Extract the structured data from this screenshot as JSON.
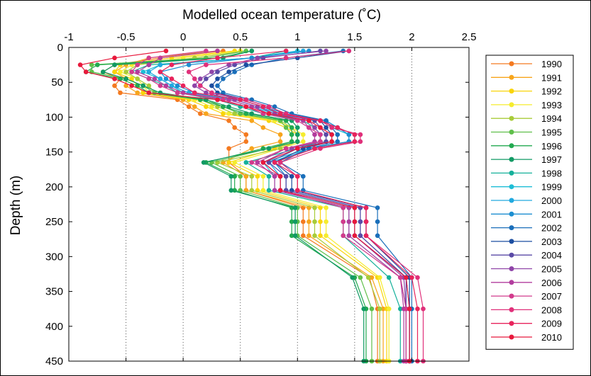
{
  "chart_data": {
    "type": "line",
    "title": "Modelled ocean temperature (˚C)",
    "xlabel": "",
    "ylabel": "Depth (m)",
    "xlim": [
      -1,
      2.5
    ],
    "ylim": [
      0,
      450
    ],
    "y_inverted": true,
    "x_axis_position": "top",
    "x_ticks": [
      -1,
      -0.5,
      0,
      0.5,
      1,
      1.5,
      2,
      2.5
    ],
    "x_tick_labels": [
      "-1",
      "-0.5",
      "0",
      "0.5",
      "1",
      "1.5",
      "2",
      "2.5"
    ],
    "y_ticks": [
      0,
      50,
      100,
      150,
      200,
      250,
      300,
      350,
      400,
      450
    ],
    "y_tick_labels": [
      "0",
      "50",
      "100",
      "150",
      "200",
      "250",
      "300",
      "350",
      "400",
      "450"
    ],
    "grid": "vertical-dotted",
    "legend_position": "right",
    "depths": [
      5,
      15,
      25,
      35,
      45,
      55,
      65,
      75,
      85,
      95,
      105,
      115,
      125,
      135,
      145,
      165,
      185,
      205,
      230,
      250,
      270,
      330,
      375,
      450
    ],
    "series": [
      {
        "name": "1990",
        "color": "#f47a20",
        "values": [
          0.35,
          -0.2,
          -0.6,
          -0.7,
          -0.55,
          -0.6,
          -0.55,
          -0.05,
          0.05,
          0.15,
          0.4,
          0.45,
          0.55,
          0.55,
          0.4,
          0.4,
          0.55,
          0.55,
          1.05,
          1.05,
          1.05,
          1.63,
          1.7,
          1.7
        ]
      },
      {
        "name": "1991",
        "color": "#f7a51c",
        "values": [
          0.3,
          -0.3,
          -0.5,
          -0.6,
          -0.5,
          -0.5,
          -0.4,
          0.0,
          0.1,
          0.2,
          0.6,
          0.7,
          0.85,
          0.85,
          0.6,
          0.35,
          0.55,
          0.55,
          1.1,
          1.1,
          1.1,
          1.65,
          1.75,
          1.75
        ]
      },
      {
        "name": "1992",
        "color": "#f9d40a",
        "values": [
          0.45,
          -0.1,
          -0.55,
          -0.6,
          -0.45,
          -0.4,
          -0.35,
          0.05,
          0.2,
          0.35,
          0.75,
          0.9,
          1.0,
          1.0,
          0.8,
          0.4,
          0.65,
          0.65,
          1.2,
          1.2,
          1.2,
          1.7,
          1.78,
          1.78
        ]
      },
      {
        "name": "1993",
        "color": "#f5ec2e",
        "values": [
          0.5,
          0.0,
          -0.45,
          -0.55,
          -0.4,
          -0.35,
          -0.3,
          0.1,
          0.25,
          0.4,
          0.8,
          0.95,
          1.05,
          1.05,
          0.85,
          0.45,
          0.7,
          0.7,
          1.25,
          1.25,
          1.25,
          1.72,
          1.8,
          1.8
        ]
      },
      {
        "name": "1994",
        "color": "#a8cc3a",
        "values": [
          0.55,
          0.1,
          -0.4,
          -0.5,
          -0.4,
          -0.3,
          -0.25,
          0.15,
          0.3,
          0.45,
          0.85,
          0.95,
          1.0,
          1.0,
          0.85,
          0.3,
          0.6,
          0.6,
          1.15,
          1.15,
          1.15,
          1.62,
          1.72,
          1.72
        ]
      },
      {
        "name": "1995",
        "color": "#5fbf4a",
        "values": [
          0.55,
          0.2,
          -0.8,
          -0.8,
          -0.5,
          -0.35,
          -0.25,
          0.2,
          0.35,
          0.5,
          0.85,
          0.9,
          0.95,
          0.95,
          0.75,
          0.25,
          0.5,
          0.5,
          1.0,
          1.0,
          1.0,
          1.55,
          1.65,
          1.65
        ]
      },
      {
        "name": "1996",
        "color": "#22aa50",
        "values": [
          0.6,
          0.3,
          -0.75,
          -0.85,
          -0.55,
          -0.4,
          -0.3,
          0.15,
          0.35,
          0.55,
          0.9,
          0.95,
          0.95,
          0.95,
          0.7,
          0.2,
          0.45,
          0.45,
          0.95,
          0.95,
          0.95,
          1.5,
          1.6,
          1.6
        ]
      },
      {
        "name": "1997",
        "color": "#119a64",
        "values": [
          0.6,
          0.35,
          -0.6,
          -0.7,
          -0.5,
          -0.35,
          -0.2,
          0.2,
          0.4,
          0.6,
          0.95,
          1.0,
          1.0,
          1.0,
          0.75,
          0.18,
          0.42,
          0.42,
          0.98,
          0.98,
          0.98,
          1.48,
          1.58,
          1.58
        ]
      },
      {
        "name": "1998",
        "color": "#14b09a",
        "values": [
          0.9,
          0.6,
          -0.3,
          -0.45,
          -0.3,
          -0.15,
          -0.05,
          0.3,
          0.5,
          0.7,
          1.05,
          1.15,
          1.2,
          1.2,
          1.0,
          0.55,
          0.75,
          0.75,
          1.4,
          1.4,
          1.4,
          1.8,
          1.9,
          1.9
        ]
      },
      {
        "name": "1999",
        "color": "#1ebdd6",
        "values": [
          1.0,
          0.6,
          -0.2,
          -0.35,
          -0.2,
          -0.1,
          0.0,
          0.4,
          0.6,
          0.8,
          1.2,
          1.3,
          1.45,
          1.45,
          1.1,
          0.7,
          0.8,
          0.8,
          1.45,
          1.45,
          1.45,
          1.9,
          1.95,
          1.95
        ]
      },
      {
        "name": "2000",
        "color": "#21a9df",
        "values": [
          1.05,
          0.6,
          -0.2,
          -0.3,
          -0.2,
          -0.1,
          0.05,
          0.45,
          0.65,
          0.85,
          1.25,
          1.35,
          1.5,
          1.5,
          1.15,
          0.75,
          0.85,
          0.85,
          1.5,
          1.5,
          1.5,
          1.95,
          1.98,
          1.98
        ]
      },
      {
        "name": "2001",
        "color": "#1c8ed0",
        "values": [
          1.1,
          0.6,
          0.05,
          -0.2,
          -0.15,
          -0.05,
          0.1,
          0.5,
          0.7,
          0.9,
          1.25,
          1.35,
          1.45,
          1.45,
          1.1,
          0.8,
          0.9,
          0.9,
          1.55,
          1.55,
          1.55,
          1.95,
          1.98,
          1.98
        ]
      },
      {
        "name": "2002",
        "color": "#1a6fba",
        "values": [
          1.4,
          0.9,
          0.6,
          0.45,
          0.35,
          0.3,
          0.35,
          0.6,
          0.8,
          0.95,
          1.25,
          1.3,
          1.35,
          1.35,
          1.1,
          0.85,
          1.05,
          1.05,
          1.7,
          1.7,
          1.7,
          2.0,
          2.0,
          2.0
        ]
      },
      {
        "name": "2003",
        "color": "#1c4ea0",
        "values": [
          1.45,
          1.0,
          0.55,
          0.4,
          0.3,
          0.25,
          0.3,
          0.55,
          0.75,
          0.9,
          1.2,
          1.25,
          1.3,
          1.3,
          1.05,
          0.8,
          0.95,
          0.95,
          1.6,
          1.6,
          1.6,
          1.98,
          1.98,
          1.98
        ]
      },
      {
        "name": "2004",
        "color": "#5a4aa6",
        "values": [
          1.2,
          0.7,
          0.45,
          0.3,
          0.2,
          0.15,
          0.25,
          0.5,
          0.7,
          0.85,
          1.15,
          1.2,
          1.25,
          1.25,
          1.0,
          0.75,
          0.9,
          0.9,
          1.55,
          1.55,
          1.55,
          1.95,
          1.95,
          1.95
        ]
      },
      {
        "name": "2005",
        "color": "#8f44a8",
        "values": [
          1.25,
          0.65,
          0.4,
          0.25,
          0.15,
          0.1,
          0.2,
          0.45,
          0.65,
          0.8,
          1.1,
          1.15,
          1.2,
          1.2,
          0.95,
          0.7,
          0.85,
          0.85,
          1.5,
          1.5,
          1.5,
          1.93,
          1.95,
          1.95
        ]
      },
      {
        "name": "2006",
        "color": "#b23d9e",
        "values": [
          0.3,
          -0.2,
          -0.3,
          -0.4,
          -0.25,
          -0.15,
          0.0,
          0.4,
          0.6,
          0.75,
          1.05,
          1.1,
          1.15,
          1.15,
          0.9,
          0.65,
          0.8,
          0.8,
          1.45,
          1.45,
          1.45,
          1.9,
          1.93,
          1.93
        ]
      },
      {
        "name": "2007",
        "color": "#d23a8c",
        "values": [
          0.2,
          -0.3,
          -0.4,
          -0.45,
          -0.3,
          -0.2,
          -0.05,
          0.35,
          0.55,
          0.7,
          1.0,
          1.1,
          1.2,
          1.2,
          0.9,
          0.6,
          0.85,
          0.85,
          1.4,
          1.4,
          1.4,
          1.9,
          1.95,
          1.95
        ]
      },
      {
        "name": "2008",
        "color": "#e0307a",
        "values": [
          1.45,
          0.9,
          0.2,
          0.05,
          0.1,
          0.15,
          0.25,
          0.55,
          0.75,
          0.9,
          1.2,
          1.3,
          1.55,
          1.55,
          1.2,
          0.85,
          1.0,
          1.0,
          1.6,
          1.6,
          1.6,
          2.05,
          2.1,
          2.1
        ]
      },
      {
        "name": "2009",
        "color": "#e8245c",
        "values": [
          0.9,
          0.3,
          -0.1,
          -0.2,
          -0.1,
          0.0,
          0.1,
          0.5,
          0.7,
          0.85,
          1.2,
          1.35,
          1.5,
          1.5,
          1.15,
          0.8,
          1.0,
          1.0,
          1.6,
          1.6,
          1.6,
          2.0,
          2.05,
          2.05
        ]
      },
      {
        "name": "2010",
        "color": "#e8193c",
        "values": [
          -0.15,
          -0.6,
          -0.9,
          -0.85,
          -0.6,
          -0.45,
          -0.3,
          0.3,
          0.55,
          0.75,
          1.1,
          1.2,
          1.3,
          1.3,
          1.0,
          0.7,
          0.85,
          0.85,
          1.5,
          1.5,
          1.5,
          1.95,
          1.98,
          1.98
        ]
      }
    ]
  }
}
